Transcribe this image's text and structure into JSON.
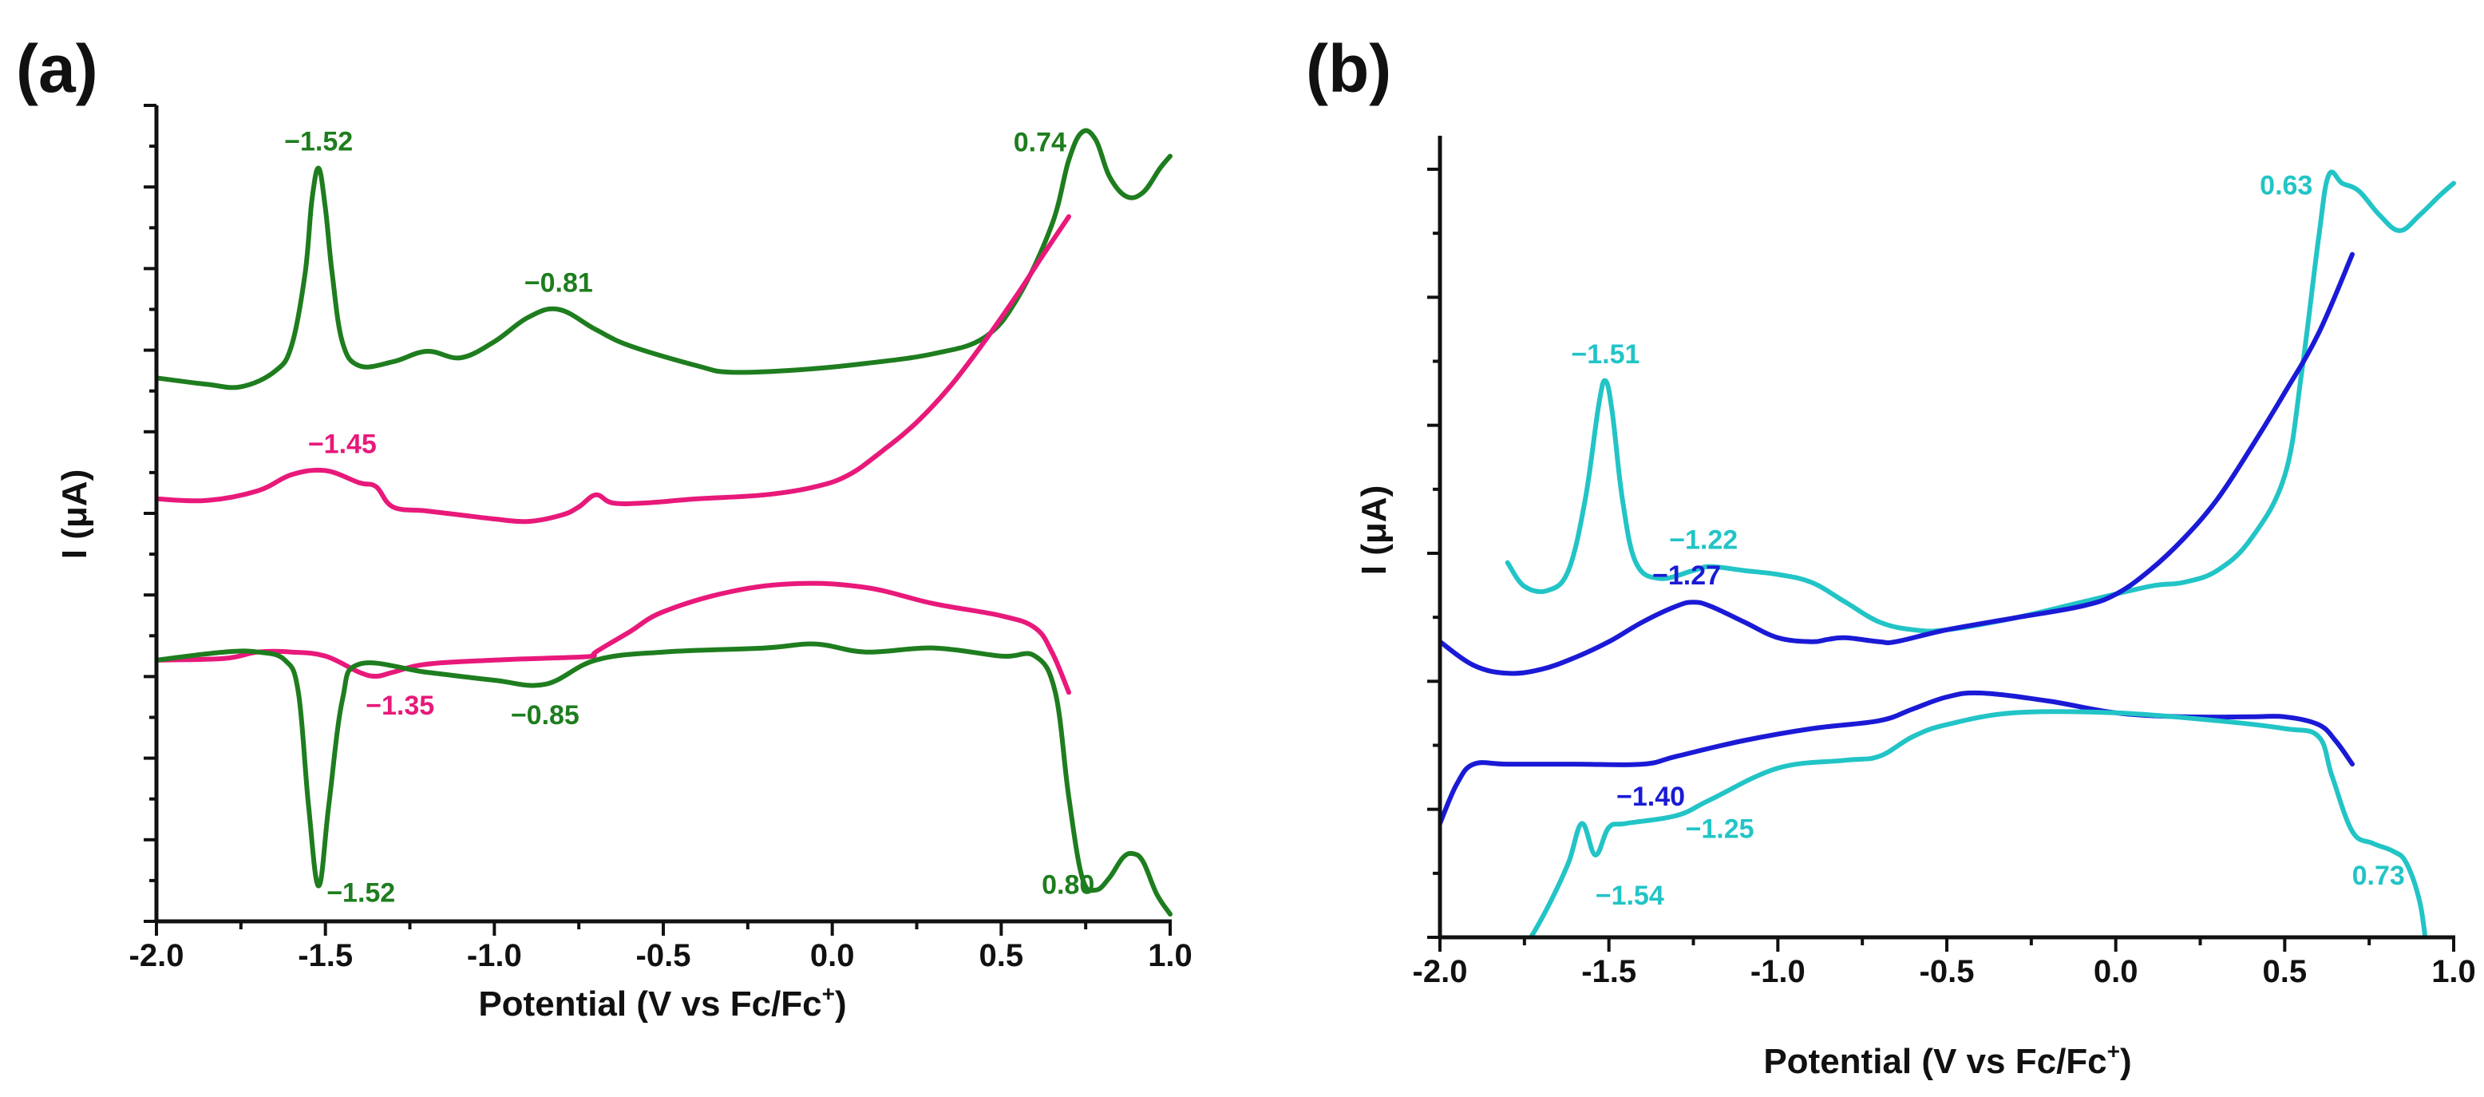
{
  "chart_data": [
    {
      "type": "line",
      "panel_label": "(a)",
      "xlabel": "Potential (V vs Fc/Fc",
      "xlabel_sup": "+",
      "xlabel_end": ")",
      "ylabel": "I (μA)",
      "xlim": [
        -2.0,
        1.0
      ],
      "ylim": [
        0,
        100
      ],
      "xticks": [
        -2.0,
        -1.5,
        -1.0,
        -0.5,
        0.0,
        0.5,
        1.0
      ],
      "xtick_labels": [
        "-2.0",
        "-1.5",
        "-1.0",
        "-0.5",
        "0.0",
        "0.5",
        "1.0"
      ],
      "y_major_ticks": 10,
      "series": [
        {
          "name": "green forward",
          "color": "#1e7d1e",
          "x": [
            -2.0,
            -1.85,
            -1.75,
            -1.65,
            -1.6,
            -1.56,
            -1.54,
            -1.52,
            -1.5,
            -1.48,
            -1.45,
            -1.4,
            -1.3,
            -1.2,
            -1.1,
            -1.0,
            -0.9,
            -0.81,
            -0.7,
            -0.6,
            -0.4,
            -0.3,
            -0.1,
            0.1,
            0.3,
            0.45,
            0.55,
            0.65,
            0.7,
            0.74,
            0.78,
            0.82,
            0.87,
            0.92,
            0.97,
            1.0
          ],
          "y": [
            67.0,
            66.2,
            65.9,
            67.8,
            71.0,
            80.0,
            89.0,
            93.0,
            88.0,
            80.0,
            71.5,
            68.5,
            69.0,
            70.3,
            69.5,
            71.5,
            74.5,
            75.5,
            73.0,
            71.0,
            68.5,
            67.7,
            68.0,
            68.8,
            70.0,
            72.0,
            77.0,
            86.0,
            94.0,
            97.5,
            96.5,
            92.0,
            89.5,
            90.0,
            93.0,
            94.5
          ]
        },
        {
          "name": "pink forward",
          "color": "#e8197a",
          "x": [
            -2.0,
            -1.85,
            -1.7,
            -1.6,
            -1.5,
            -1.4,
            -1.35,
            -1.3,
            -1.2,
            -1.1,
            -1.0,
            -0.9,
            -0.8,
            -0.75,
            -0.7,
            -0.65,
            -0.55,
            -0.4,
            -0.2,
            -0.05,
            0.05,
            0.15,
            0.25,
            0.35,
            0.45,
            0.55,
            0.62,
            0.7
          ],
          "y": [
            52.0,
            51.8,
            53.0,
            55.0,
            55.5,
            54.0,
            53.5,
            51.0,
            50.5,
            50.0,
            49.5,
            49.2,
            50.0,
            51.0,
            52.5,
            51.5,
            51.5,
            52.0,
            52.5,
            53.5,
            55.0,
            58.0,
            61.5,
            66.0,
            71.5,
            77.5,
            82.0,
            87.0
          ]
        },
        {
          "name": "pink reverse",
          "color": "#e8197a",
          "x": [
            0.7,
            0.65,
            0.6,
            0.5,
            0.3,
            0.1,
            -0.1,
            -0.3,
            -0.5,
            -0.6,
            -0.7,
            -0.71,
            -0.8,
            -1.0,
            -1.2,
            -1.3,
            -1.35,
            -1.4,
            -1.5,
            -1.6,
            -1.7,
            -1.8,
            -2.0
          ],
          "y": [
            28.0,
            33.0,
            36.0,
            37.5,
            39.0,
            41.0,
            41.5,
            40.5,
            38.0,
            35.5,
            33.0,
            32.5,
            32.3,
            32.0,
            31.5,
            30.5,
            30.0,
            30.5,
            32.5,
            33.0,
            33.0,
            32.2,
            32.0
          ]
        },
        {
          "name": "green reverse",
          "color": "#1e7d1e",
          "x": [
            1.0,
            0.96,
            0.92,
            0.89,
            0.86,
            0.82,
            0.78,
            0.74,
            0.7,
            0.66,
            0.6,
            0.5,
            0.3,
            0.1,
            -0.05,
            -0.2,
            -0.5,
            -0.7,
            -0.85,
            -1.0,
            -1.2,
            -1.4,
            -1.45,
            -1.49,
            -1.52,
            -1.55,
            -1.58,
            -1.62,
            -1.7,
            -1.8,
            -2.0
          ],
          "y": [
            0.5,
            3.0,
            7.0,
            8.0,
            7.5,
            5.0,
            3.5,
            5.0,
            15.0,
            28.0,
            32.5,
            32.5,
            33.5,
            33.0,
            34.0,
            33.5,
            33.0,
            32.0,
            29.0,
            29.5,
            30.5,
            31.5,
            27.0,
            14.0,
            4.0,
            14.0,
            28.0,
            32.0,
            33.0,
            33.0,
            32.0
          ]
        }
      ],
      "annotations": [
        {
          "text": "−1.52",
          "x": -1.52,
          "y": 93.0,
          "color": "#1e7d1e"
        },
        {
          "text": "−0.81",
          "x": -0.81,
          "y": 75.5,
          "color": "#1e7d1e"
        },
        {
          "text": "0.74",
          "x": 0.74,
          "y": 97.5,
          "color": "#1e7d1e"
        },
        {
          "text": "−1.45",
          "x": -1.45,
          "y": 55.5,
          "color": "#e8197a"
        },
        {
          "text": "−1.35",
          "x": -1.35,
          "y": 30.0,
          "color": "#e8197a"
        },
        {
          "text": "−0.85",
          "x": -0.85,
          "y": 29.0,
          "color": "#1e7d1e"
        },
        {
          "text": "−1.52",
          "x": -1.52,
          "y": 4.0,
          "color": "#1e7d1e"
        },
        {
          "text": "0.80",
          "x": 0.8,
          "y": 5.0,
          "color": "#1e7d1e"
        }
      ]
    },
    {
      "type": "line",
      "panel_label": "(b)",
      "xlabel": "Potential (V vs Fc/Fc",
      "xlabel_sup": "+",
      "xlabel_end": ")",
      "ylabel": "I (μA)",
      "xlim": [
        -2.0,
        1.0
      ],
      "ylim": [
        0,
        100
      ],
      "xticks": [
        -2.0,
        -1.5,
        -1.0,
        -0.5,
        0.0,
        0.5,
        1.0
      ],
      "xtick_labels": [
        "-2.0",
        "-1.5",
        "-1.0",
        "-0.5",
        "0.0",
        "0.5",
        "1.0"
      ],
      "y_major_ticks": 6,
      "series": [
        {
          "name": "cyan forward",
          "color": "#22c4c6",
          "x": [
            -1.8,
            -1.75,
            -1.68,
            -1.62,
            -1.57,
            -1.53,
            -1.51,
            -1.49,
            -1.46,
            -1.42,
            -1.35,
            -1.25,
            -1.2,
            -1.1,
            -1.0,
            -0.9,
            -0.8,
            -0.7,
            -0.6,
            -0.5,
            -0.3,
            -0.1,
            0.1,
            0.2,
            0.3,
            0.4,
            0.5,
            0.55,
            0.6,
            0.63,
            0.67,
            0.72,
            0.78,
            0.84,
            0.9,
            0.96,
            1.0
          ],
          "y": [
            47.0,
            44.0,
            43.5,
            46.0,
            55.0,
            67.0,
            70.0,
            66.0,
            55.0,
            47.0,
            45.0,
            46.0,
            46.5,
            46.0,
            45.5,
            44.5,
            42.0,
            39.5,
            38.5,
            38.5,
            40.0,
            42.0,
            44.0,
            44.5,
            46.0,
            50.0,
            58.0,
            71.0,
            88.0,
            96.0,
            95.0,
            94.0,
            91.0,
            89.0,
            91.0,
            93.5,
            95.0
          ]
        },
        {
          "name": "blue forward",
          "color": "#1a1ad6",
          "x": [
            -2.0,
            -1.9,
            -1.8,
            -1.7,
            -1.6,
            -1.5,
            -1.4,
            -1.3,
            -1.25,
            -1.2,
            -1.1,
            -1.0,
            -0.9,
            -0.85,
            -0.8,
            -0.7,
            -0.65,
            -0.5,
            -0.3,
            -0.1,
            0.0,
            0.1,
            0.2,
            0.3,
            0.4,
            0.5,
            0.6,
            0.7
          ],
          "y": [
            37.0,
            34.0,
            33.0,
            33.5,
            35.0,
            37.0,
            39.5,
            41.5,
            42.0,
            41.5,
            39.5,
            37.5,
            37.0,
            37.3,
            37.5,
            37.0,
            37.0,
            38.5,
            40.0,
            41.5,
            43.0,
            46.0,
            50.0,
            55.0,
            61.5,
            68.5,
            76.0,
            86.0
          ]
        },
        {
          "name": "blue reverse",
          "color": "#1a1ad6",
          "x": [
            0.7,
            0.65,
            0.6,
            0.5,
            0.4,
            0.2,
            0.0,
            -0.2,
            -0.4,
            -0.5,
            -0.6,
            -0.7,
            -0.9,
            -1.1,
            -1.3,
            -1.4,
            -1.6,
            -1.8,
            -1.9,
            -1.95,
            -2.0
          ],
          "y": [
            21.5,
            24.5,
            26.5,
            27.5,
            27.5,
            27.5,
            28.0,
            29.5,
            30.5,
            30.0,
            28.5,
            27.0,
            26.0,
            24.5,
            22.5,
            21.5,
            21.5,
            21.5,
            21.5,
            19.0,
            14.0
          ]
        },
        {
          "name": "cyan reverse",
          "color": "#22c4c6",
          "x": [
            0.92,
            0.9,
            0.86,
            0.82,
            0.76,
            0.7,
            0.64,
            0.6,
            0.5,
            0.3,
            0.0,
            -0.3,
            -0.5,
            -0.6,
            -0.7,
            -0.8,
            -1.0,
            -1.2,
            -1.3,
            -1.45,
            -1.5,
            -1.54,
            -1.58,
            -1.62,
            -1.68,
            -1.74,
            -1.78
          ],
          "y": [
            -2.0,
            4.0,
            9.0,
            10.5,
            11.5,
            13.0,
            20.0,
            25.0,
            26.0,
            27.0,
            28.0,
            28.0,
            26.5,
            25.0,
            22.5,
            22.0,
            21.0,
            17.0,
            15.0,
            14.0,
            13.5,
            10.0,
            14.0,
            9.0,
            3.5,
            -1.0,
            -3.0
          ]
        }
      ],
      "annotations": [
        {
          "text": "0.63",
          "x": 0.63,
          "y": 96.0,
          "color": "#22c4c6"
        },
        {
          "text": "−1.51",
          "x": -1.51,
          "y": 70.0,
          "color": "#22c4c6"
        },
        {
          "text": "−1.22",
          "x": -1.22,
          "y": 46.5,
          "color": "#22c4c6"
        },
        {
          "text": "−1.27",
          "x": -1.27,
          "y": 42.0,
          "color": "#1a1ad6"
        },
        {
          "text": "−1.40",
          "x": -1.4,
          "y": 21.5,
          "color": "#1a1ad6"
        },
        {
          "text": "−1.25",
          "x": -1.25,
          "y": 15.0,
          "color": "#22c4c6"
        },
        {
          "text": "0.73",
          "x": 0.73,
          "y": 11.5,
          "color": "#22c4c6"
        },
        {
          "text": "−1.54",
          "x": -1.54,
          "y": 10.0,
          "color": "#22c4c6"
        }
      ]
    }
  ]
}
